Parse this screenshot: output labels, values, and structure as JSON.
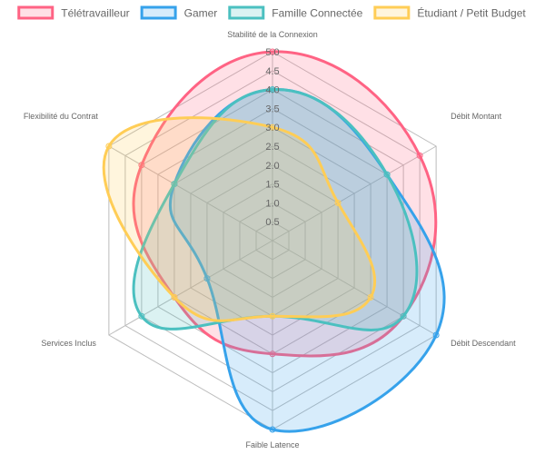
{
  "chart_data": {
    "type": "radar",
    "axes": [
      "Stabilité de la Connexion",
      "Débit Montant",
      "Débit Descendant",
      "Faible Latence",
      "Services Inclus",
      "Flexibilité du Contrat"
    ],
    "r_range": [
      0,
      5
    ],
    "ticks": [
      "0.5",
      "1.0",
      "1.5",
      "2.0",
      "2.5",
      "3.0",
      "3.5",
      "4.0",
      "4.5",
      "5.0"
    ],
    "tick_values": [
      0.5,
      1.0,
      1.5,
      2.0,
      2.5,
      3.0,
      3.5,
      4.0,
      4.5,
      5.0
    ],
    "legend_position": "top",
    "grid": true,
    "series": [
      {
        "name": "Télétravailleur",
        "values": [
          5,
          4.5,
          4,
          3,
          3,
          4
        ],
        "color": "#ff6384",
        "fill": "rgba(255,99,132,0.2)"
      },
      {
        "name": "Gamer",
        "values": [
          4,
          3.5,
          5,
          5,
          2,
          3
        ],
        "color": "#36a2eb",
        "fill": "rgba(54,162,235,0.2)"
      },
      {
        "name": "Famille Connectée",
        "values": [
          4,
          3.5,
          4,
          2,
          4,
          3
        ],
        "color": "#4bc0c0",
        "fill": "rgba(75,192,192,0.2)"
      },
      {
        "name": "Étudiant / Petit Budget",
        "values": [
          3,
          2,
          3,
          2,
          3,
          5
        ],
        "color": "#ffcd56",
        "fill": "rgba(255,205,86,0.2)"
      }
    ]
  }
}
